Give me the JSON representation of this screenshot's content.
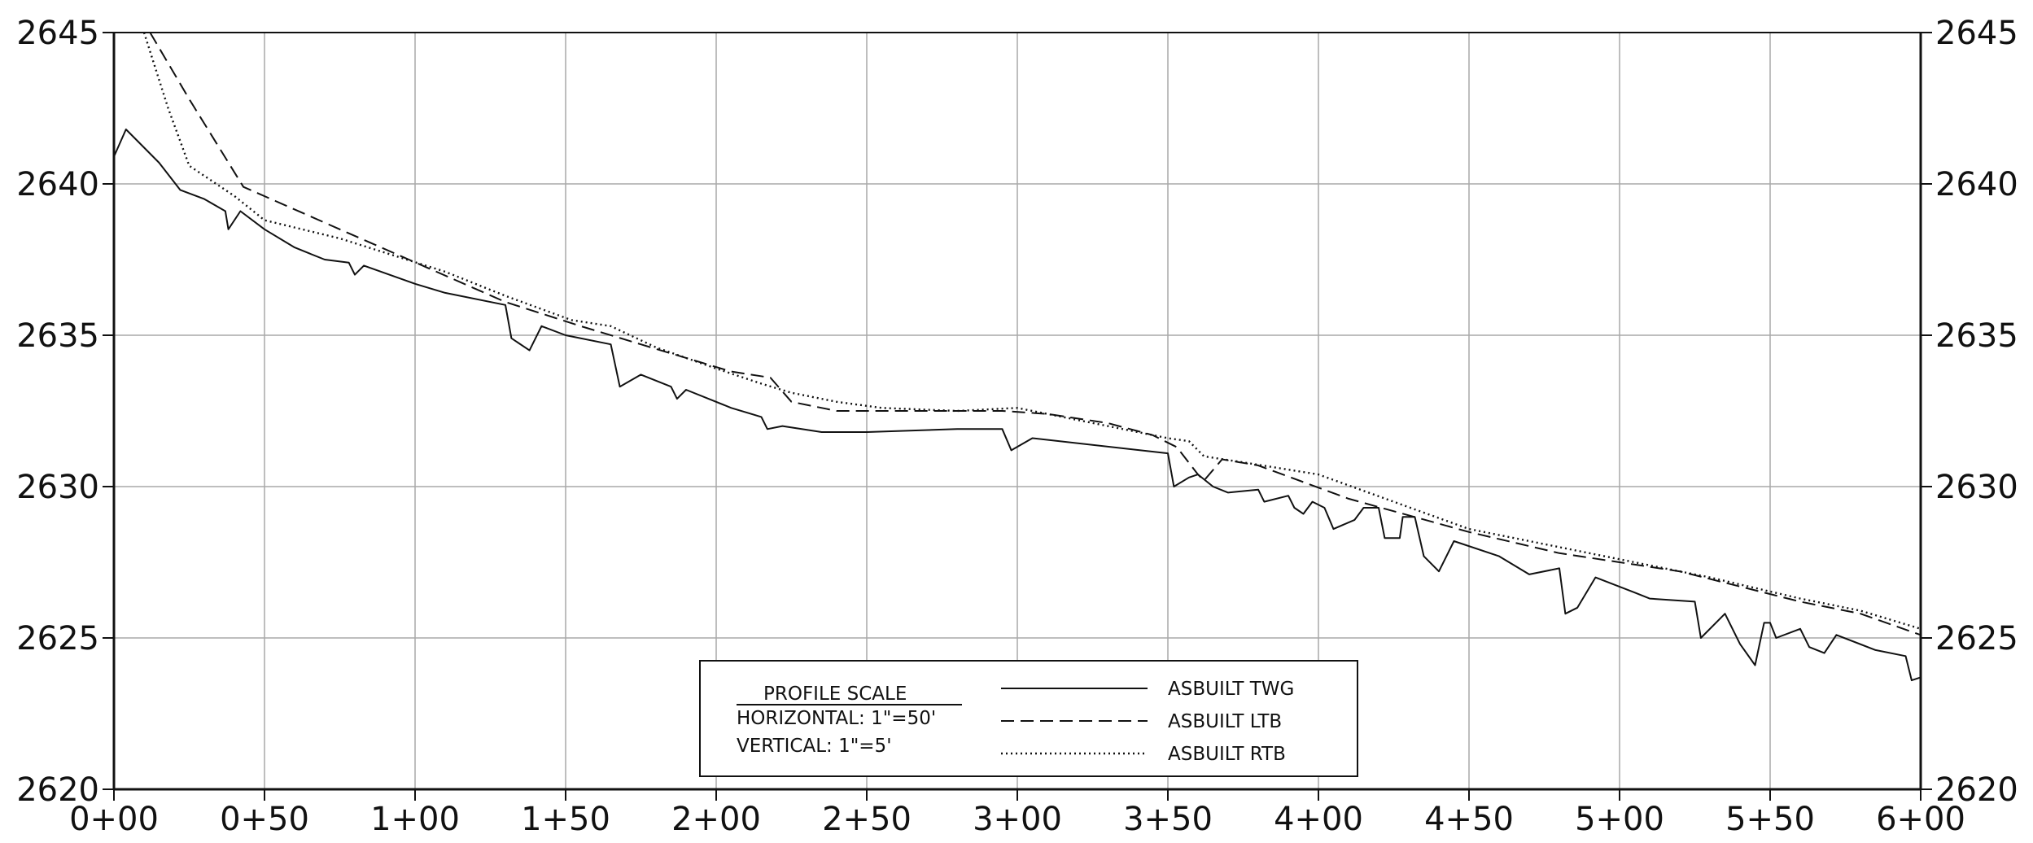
{
  "chart_data": {
    "type": "line",
    "title": "",
    "xlabel": "",
    "ylabel": "",
    "xlim": [
      0,
      600
    ],
    "ylim": [
      2620,
      2645
    ],
    "grid": true,
    "legend_position": "bottom-center",
    "x_tick_values": [
      0,
      50,
      100,
      150,
      200,
      250,
      300,
      350,
      400,
      450,
      500,
      550,
      600
    ],
    "x_tick_labels": [
      "0+00",
      "0+50",
      "1+00",
      "1+50",
      "2+00",
      "2+50",
      "3+00",
      "3+50",
      "4+00",
      "4+50",
      "5+00",
      "5+50",
      "6+00"
    ],
    "y_tick_values": [
      2620,
      2625,
      2630,
      2635,
      2640,
      2645
    ],
    "y_tick_labels": [
      "2620",
      "2625",
      "2630",
      "2635",
      "2640",
      "2645"
    ],
    "scale_box": {
      "title": "PROFILE SCALE",
      "horizontal": "HORIZONTAL:  1\"=50'",
      "vertical": "VERTICAL:  1\"=5'"
    },
    "series": [
      {
        "name": "ASBUILT TWG",
        "style": "solid",
        "points": [
          [
            0,
            2640.9
          ],
          [
            4,
            2641.8
          ],
          [
            15,
            2640.7
          ],
          [
            22,
            2639.8
          ],
          [
            30,
            2639.5
          ],
          [
            37,
            2639.1
          ],
          [
            38,
            2638.5
          ],
          [
            42,
            2639.1
          ],
          [
            50,
            2638.5
          ],
          [
            60,
            2637.9
          ],
          [
            65,
            2637.7
          ],
          [
            70,
            2637.5
          ],
          [
            78,
            2637.4
          ],
          [
            80,
            2637.0
          ],
          [
            83,
            2637.3
          ],
          [
            100,
            2636.7
          ],
          [
            110,
            2636.4
          ],
          [
            130,
            2636.0
          ],
          [
            132,
            2634.9
          ],
          [
            138,
            2634.5
          ],
          [
            142,
            2635.3
          ],
          [
            150,
            2635.0
          ],
          [
            165,
            2634.7
          ],
          [
            168,
            2633.3
          ],
          [
            175,
            2633.7
          ],
          [
            185,
            2633.3
          ],
          [
            187,
            2632.9
          ],
          [
            190,
            2633.2
          ],
          [
            205,
            2632.6
          ],
          [
            215,
            2632.3
          ],
          [
            217,
            2631.9
          ],
          [
            222,
            2632.0
          ],
          [
            235,
            2631.8
          ],
          [
            250,
            2631.8
          ],
          [
            280,
            2631.9
          ],
          [
            295,
            2631.9
          ],
          [
            298,
            2631.2
          ],
          [
            305,
            2631.6
          ],
          [
            350,
            2631.1
          ],
          [
            352,
            2630.0
          ],
          [
            357,
            2630.3
          ],
          [
            360,
            2630.4
          ],
          [
            365,
            2630.0
          ],
          [
            370,
            2629.8
          ],
          [
            380,
            2629.9
          ],
          [
            382,
            2629.5
          ],
          [
            390,
            2629.7
          ],
          [
            392,
            2629.3
          ],
          [
            395,
            2629.1
          ],
          [
            398,
            2629.5
          ],
          [
            402,
            2629.3
          ],
          [
            405,
            2628.6
          ],
          [
            412,
            2628.9
          ],
          [
            415,
            2629.3
          ],
          [
            420,
            2629.3
          ],
          [
            422,
            2628.3
          ],
          [
            427,
            2628.3
          ],
          [
            428,
            2629.0
          ],
          [
            432,
            2629.0
          ],
          [
            435,
            2627.7
          ],
          [
            440,
            2627.2
          ],
          [
            445,
            2628.2
          ],
          [
            460,
            2627.7
          ],
          [
            470,
            2627.1
          ],
          [
            480,
            2627.3
          ],
          [
            482,
            2625.8
          ],
          [
            486,
            2626.0
          ],
          [
            492,
            2627.0
          ],
          [
            505,
            2626.5
          ],
          [
            510,
            2626.3
          ],
          [
            525,
            2626.2
          ],
          [
            527,
            2625.0
          ],
          [
            535,
            2625.8
          ],
          [
            540,
            2624.8
          ],
          [
            545,
            2624.1
          ],
          [
            548,
            2625.5
          ],
          [
            550,
            2625.5
          ],
          [
            552,
            2625.0
          ],
          [
            560,
            2625.3
          ],
          [
            563,
            2624.7
          ],
          [
            568,
            2624.5
          ],
          [
            572,
            2625.1
          ],
          [
            585,
            2624.6
          ],
          [
            595,
            2624.4
          ],
          [
            597,
            2623.6
          ],
          [
            600,
            2623.7
          ]
        ]
      },
      {
        "name": "ASBUILT LTB",
        "style": "dashed",
        "points": [
          [
            12,
            2645.0
          ],
          [
            25,
            2642.8
          ],
          [
            43,
            2639.9
          ],
          [
            75,
            2638.5
          ],
          [
            130,
            2636.1
          ],
          [
            155,
            2635.3
          ],
          [
            175,
            2634.7
          ],
          [
            205,
            2633.8
          ],
          [
            218,
            2633.6
          ],
          [
            225,
            2632.8
          ],
          [
            240,
            2632.5
          ],
          [
            260,
            2632.5
          ],
          [
            295,
            2632.5
          ],
          [
            310,
            2632.4
          ],
          [
            330,
            2632.1
          ],
          [
            345,
            2631.7
          ],
          [
            353,
            2631.3
          ],
          [
            360,
            2630.4
          ],
          [
            362,
            2630.2
          ],
          [
            368,
            2630.9
          ],
          [
            380,
            2630.7
          ],
          [
            410,
            2629.6
          ],
          [
            450,
            2628.5
          ],
          [
            480,
            2627.8
          ],
          [
            500,
            2627.5
          ],
          [
            520,
            2627.2
          ],
          [
            540,
            2626.7
          ],
          [
            560,
            2626.2
          ],
          [
            580,
            2625.8
          ],
          [
            600,
            2625.1
          ]
        ]
      },
      {
        "name": "ASBUILT RTB",
        "style": "dotted",
        "points": [
          [
            10,
            2645.0
          ],
          [
            18,
            2642.5
          ],
          [
            25,
            2640.6
          ],
          [
            40,
            2639.6
          ],
          [
            50,
            2638.8
          ],
          [
            75,
            2638.2
          ],
          [
            110,
            2637.1
          ],
          [
            130,
            2636.3
          ],
          [
            152,
            2635.5
          ],
          [
            165,
            2635.3
          ],
          [
            180,
            2634.6
          ],
          [
            200,
            2633.9
          ],
          [
            215,
            2633.4
          ],
          [
            225,
            2633.1
          ],
          [
            240,
            2632.8
          ],
          [
            255,
            2632.6
          ],
          [
            280,
            2632.5
          ],
          [
            300,
            2632.6
          ],
          [
            315,
            2632.3
          ],
          [
            340,
            2631.8
          ],
          [
            350,
            2631.6
          ],
          [
            357,
            2631.5
          ],
          [
            362,
            2631.0
          ],
          [
            375,
            2630.8
          ],
          [
            400,
            2630.4
          ],
          [
            450,
            2628.6
          ],
          [
            480,
            2628.0
          ],
          [
            500,
            2627.6
          ],
          [
            530,
            2627.0
          ],
          [
            560,
            2626.3
          ],
          [
            580,
            2625.9
          ],
          [
            600,
            2625.3
          ]
        ]
      }
    ]
  }
}
